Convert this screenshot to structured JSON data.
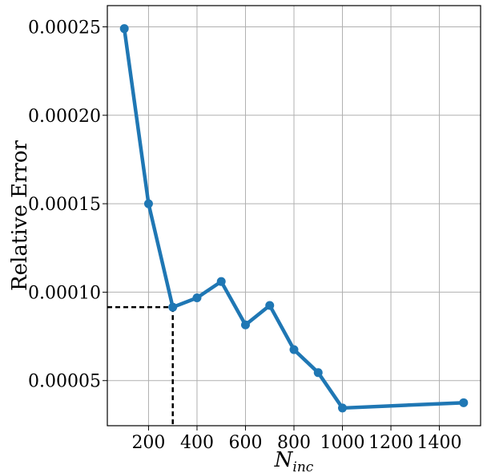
{
  "chart_data": {
    "type": "line",
    "title": "",
    "xlabel": "N",
    "xlabel_sub": "inc",
    "ylabel": "Relative Error",
    "xlim": [
      30,
      1570
    ],
    "ylim": [
      2.45e-05,
      0.000262
    ],
    "xticks": [
      200,
      400,
      600,
      800,
      1000,
      1200,
      1400
    ],
    "xtick_labels": [
      "200",
      "400",
      "600",
      "800",
      "1000",
      "1200",
      "1400"
    ],
    "yticks": [
      5e-05,
      0.0001,
      0.00015,
      0.0002,
      0.00025
    ],
    "ytick_labels": [
      "0.00005",
      "0.00010",
      "0.00015",
      "0.00020",
      "0.00025"
    ],
    "grid": true,
    "series": [
      {
        "color": "#1f77b4",
        "x": [
          100,
          200,
          300,
          400,
          500,
          600,
          700,
          800,
          900,
          1000,
          1500
        ],
        "y": [
          0.000249,
          0.00015,
          9.15e-05,
          9.68e-05,
          0.000106,
          8.15e-05,
          9.25e-05,
          6.75e-05,
          5.45e-05,
          3.45e-05,
          3.75e-05
        ]
      }
    ],
    "annotations": [
      {
        "type": "dashed-guide",
        "x": 300,
        "y": 9.15e-05,
        "color": "#000000"
      }
    ]
  }
}
